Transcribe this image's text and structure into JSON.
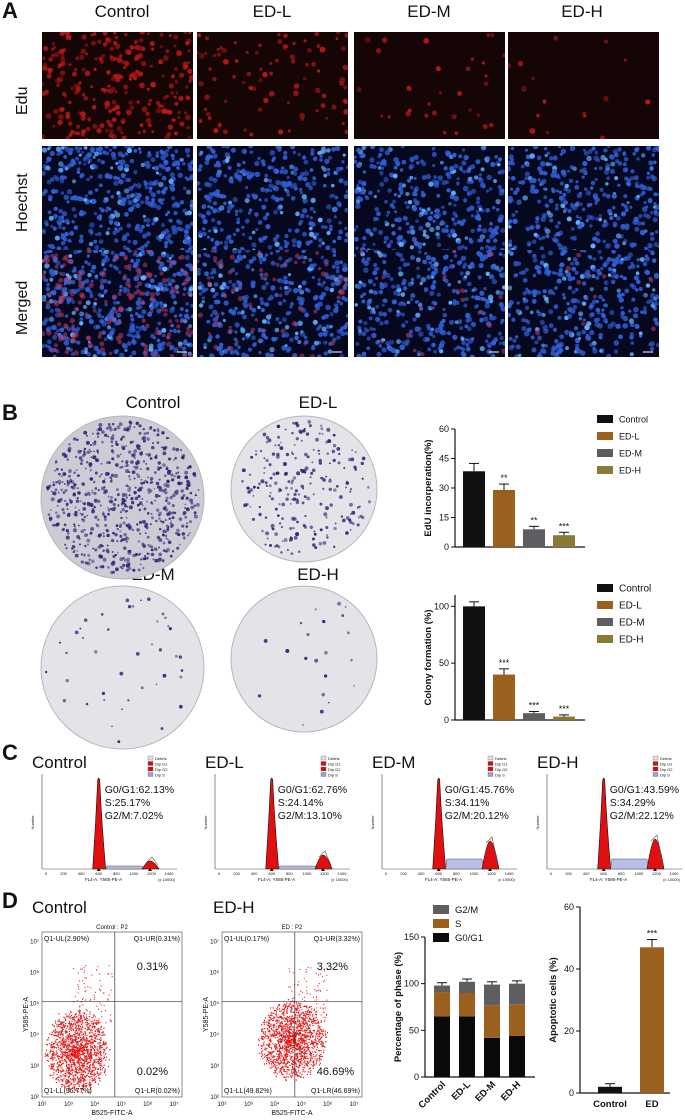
{
  "panels": {
    "a": "A",
    "b": "B",
    "c": "C",
    "d": "D"
  },
  "panel_a": {
    "columns": [
      "Control",
      "ED-L",
      "ED-M",
      "ED-H"
    ],
    "rows": [
      "Edu",
      "Hoechst",
      "Merged"
    ],
    "edu_density": [
      1.0,
      0.35,
      0.12,
      0.06
    ]
  },
  "panel_b": {
    "dish_titles": [
      "Control",
      "ED-L",
      "ED-M",
      "ED-H"
    ],
    "colony_density": [
      1.0,
      0.35,
      0.06,
      0.03
    ]
  },
  "panel_c": {
    "titles": [
      "Control",
      "ED-L",
      "ED-M",
      "ED-H"
    ],
    "stats": [
      [
        "G0/G1:62.13%",
        "S:25.17%",
        "G2/M:7.02%"
      ],
      [
        "G0/G1:62.76%",
        "S:24.14%",
        "G2/M:13.10%"
      ],
      [
        "G0/G1:45.76%",
        "S:34.11%",
        "G2/M:20.12%"
      ],
      [
        "G0/G1:43.59%",
        "S:34.29%",
        "G2/M:22.12%"
      ]
    ],
    "legend": [
      "Debris",
      "Dip G1",
      "Dip G2",
      "Dip S"
    ],
    "xlabel": "FL4-A: Y585-PE-A",
    "ylabel": "Number",
    "x_unit": "(x 10000)",
    "x_ticks": [
      "0",
      "200",
      "400",
      "600",
      "800",
      "1000",
      "1200",
      "1400"
    ]
  },
  "panel_d": {
    "titles": [
      "Control",
      "ED-H"
    ],
    "plot_headers": [
      "Control : P2",
      "ED : P2"
    ],
    "quadrants": [
      {
        "ul": "Q1-UL(2.90%)",
        "ur": "Q1-UR(0.31%)",
        "ll": "Q1-LL(96.77%)",
        "lr": "Q1-LR(0.02%)",
        "ur_big": "0.31%",
        "lr_big": "0.02%"
      },
      {
        "ul": "Q1-UL(0.17%)",
        "ur": "Q1-UR(3.32%)",
        "ll": "Q1-LL(49.82%)",
        "lr": "Q1-LR(46.69%)",
        "ur_big": "3.32%",
        "lr_big": "46.69%"
      }
    ],
    "xlabel": "B525-FITC-A",
    "ylabel": "Y585-PE-A",
    "log_ticks": [
      "10²",
      "10³",
      "10⁴",
      "10⁵",
      "10⁶",
      "10⁷"
    ]
  },
  "chart_data": [
    {
      "type": "bar",
      "categories": [
        "Control",
        "ED-L",
        "ED-M",
        "ED-H"
      ],
      "values": [
        38.5,
        29,
        9,
        6
      ],
      "errors": [
        4,
        3,
        1.5,
        1.5
      ],
      "significance": [
        "",
        "**",
        "**",
        "***"
      ],
      "ylabel": "EdU incorperation(%)",
      "ylim": [
        0,
        60
      ],
      "yticks": [
        "0",
        "15",
        "30",
        "45",
        "60"
      ],
      "legend": [
        "Control",
        "ED-L",
        "ED-M",
        "ED-H"
      ],
      "colors": [
        "#111111",
        "#9b5f1e",
        "#5e5e62",
        "#8a7a34"
      ]
    },
    {
      "type": "bar",
      "categories": [
        "Control",
        "ED-L",
        "ED-M",
        "ED-H"
      ],
      "values": [
        100,
        40,
        6,
        3
      ],
      "errors": [
        4,
        5,
        1.5,
        1.5
      ],
      "significance": [
        "",
        "***",
        "***",
        "***"
      ],
      "ylabel": "Colony formation (%)",
      "ylim": [
        0,
        110
      ],
      "yticks": [
        "0",
        "50",
        "100"
      ],
      "legend": [
        "Control",
        "ED-L",
        "ED-M",
        "ED-H"
      ],
      "colors": [
        "#111111",
        "#9b5f1e",
        "#5e5e62",
        "#8a7a34"
      ]
    },
    {
      "type": "bar",
      "stacked": true,
      "categories": [
        "Control",
        "ED-L",
        "ED-M",
        "ED-H"
      ],
      "series": [
        {
          "name": "G0/G1",
          "values": [
            65,
            65,
            42,
            44
          ]
        },
        {
          "name": "S",
          "values": [
            26,
            25,
            35,
            34
          ]
        },
        {
          "name": "G2/M",
          "values": [
            7,
            12,
            22,
            22
          ]
        }
      ],
      "ylabel": "Percentage of phase (%)",
      "ylim": [
        0,
        150
      ],
      "yticks": [
        "0",
        "50",
        "100",
        "150"
      ],
      "colors": [
        "#0a0a0a",
        "#9b5f1e",
        "#5e5e62"
      ]
    },
    {
      "type": "bar",
      "categories": [
        "Control",
        "ED"
      ],
      "values": [
        2,
        47
      ],
      "errors": [
        1,
        2.5
      ],
      "significance": [
        "",
        "***"
      ],
      "ylabel": "Apoptotic cells (%)",
      "ylim": [
        0,
        60
      ],
      "yticks": [
        "0",
        "20",
        "40",
        "60"
      ],
      "colors": [
        "#111111",
        "#9b5f1e"
      ]
    }
  ]
}
